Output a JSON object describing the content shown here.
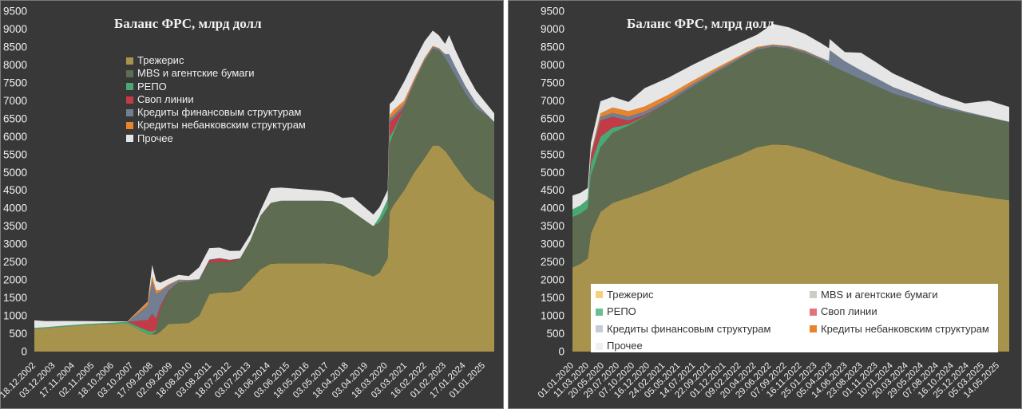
{
  "chart_data": [
    {
      "type": "area",
      "stacked": true,
      "title": "Баланс ФРС, млрд долл",
      "xlabel": "",
      "ylabel": "",
      "ylim": [
        0,
        9500
      ],
      "yticks": [
        0,
        500,
        1000,
        1500,
        2000,
        2500,
        3000,
        3500,
        4000,
        4500,
        5000,
        5500,
        6000,
        6500,
        7000,
        7500,
        8000,
        8500,
        9000,
        9500
      ],
      "grid": false,
      "legend_position": "top-left",
      "x_tick_labels": [
        "18.12.2002",
        "03.12.2003",
        "17.11.2004",
        "02.11.2005",
        "18.10.2006",
        "03.10.2007",
        "17.09.2008",
        "02.09.2009",
        "18.08.2010",
        "03.08.2011",
        "18.07.2012",
        "03.07.2013",
        "18.06.2014",
        "03.06.2015",
        "18.05.2016",
        "03.05.2017",
        "18.04.2018",
        "03.04.2019",
        "18.03.2020",
        "03.03.2021",
        "16.02.2022",
        "01.02.2023",
        "17.01.2024",
        "01.01.2025"
      ],
      "x": [
        "2002.96",
        "2003.5",
        "2004.5",
        "2005.5",
        "2006.5",
        "2007.5",
        "2008.5",
        "2008.71",
        "2008.9",
        "2009.1",
        "2009.5",
        "2010.0",
        "2010.5",
        "2011.0",
        "2011.5",
        "2012.0",
        "2012.5",
        "2013.0",
        "2013.5",
        "2014.0",
        "2014.5",
        "2015.0",
        "2016.0",
        "2017.0",
        "2017.5",
        "2018.0",
        "2018.5",
        "2019.0",
        "2019.5",
        "2019.8",
        "2020.2",
        "2020.3",
        "2020.5",
        "2021.0",
        "2021.5",
        "2022.0",
        "2022.4",
        "2022.7",
        "2023.0",
        "2023.2",
        "2023.5",
        "2024.0",
        "2024.5",
        "2025.0",
        "2025.4"
      ],
      "series": [
        {
          "name": "Трежерис",
          "color": "#a7934c",
          "values": [
            630,
            650,
            700,
            740,
            770,
            780,
            480,
            480,
            480,
            550,
            770,
            780,
            800,
            1000,
            1600,
            1650,
            1650,
            1700,
            2000,
            2300,
            2450,
            2460,
            2460,
            2460,
            2450,
            2400,
            2300,
            2200,
            2100,
            2200,
            2600,
            3900,
            4100,
            4500,
            5000,
            5400,
            5750,
            5750,
            5600,
            5450,
            5200,
            4800,
            4500,
            4350,
            4200
          ]
        },
        {
          "name": "MBS и агентские бумаги",
          "color": "#5e6c51",
          "values": [
            0,
            0,
            0,
            0,
            0,
            0,
            0,
            0,
            100,
            600,
            900,
            1150,
            1150,
            1000,
            900,
            850,
            850,
            900,
            1100,
            1500,
            1700,
            1750,
            1750,
            1750,
            1750,
            1700,
            1600,
            1500,
            1400,
            1400,
            1400,
            1900,
            2000,
            2300,
            2500,
            2700,
            2700,
            2650,
            2600,
            2550,
            2500,
            2400,
            2300,
            2250,
            2200
          ]
        },
        {
          "name": "РЕПО",
          "color": "#4aa874",
          "values": [
            30,
            30,
            30,
            30,
            30,
            50,
            100,
            80,
            30,
            20,
            0,
            0,
            0,
            0,
            0,
            0,
            0,
            0,
            0,
            0,
            0,
            0,
            0,
            0,
            0,
            0,
            0,
            0,
            0,
            150,
            250,
            200,
            100,
            0,
            0,
            0,
            0,
            0,
            0,
            0,
            0,
            0,
            0,
            0,
            0
          ]
        },
        {
          "name": "Своп линии",
          "color": "#c23b46",
          "values": [
            0,
            0,
            0,
            0,
            0,
            0,
            300,
            500,
            300,
            100,
            20,
            0,
            0,
            0,
            50,
            100,
            50,
            0,
            0,
            0,
            0,
            0,
            0,
            0,
            0,
            0,
            0,
            0,
            0,
            0,
            0,
            400,
            300,
            20,
            0,
            0,
            0,
            0,
            0,
            0,
            0,
            0,
            0,
            0,
            0
          ]
        },
        {
          "name": "Кредиты финансовым структурам",
          "color": "#727e91",
          "values": [
            0,
            0,
            0,
            0,
            0,
            0,
            400,
            900,
            700,
            400,
            150,
            60,
            40,
            20,
            20,
            10,
            10,
            0,
            0,
            0,
            0,
            0,
            0,
            0,
            0,
            0,
            0,
            0,
            0,
            0,
            0,
            100,
            100,
            80,
            60,
            50,
            50,
            50,
            100,
            300,
            250,
            200,
            150,
            50,
            10
          ]
        },
        {
          "name": "Кредиты небанковским структурам",
          "color": "#e8842c",
          "values": [
            0,
            0,
            0,
            0,
            0,
            0,
            100,
            150,
            100,
            50,
            30,
            20,
            10,
            0,
            0,
            0,
            0,
            0,
            0,
            0,
            0,
            0,
            0,
            0,
            0,
            0,
            0,
            0,
            0,
            0,
            0,
            100,
            150,
            100,
            60,
            40,
            30,
            20,
            0,
            0,
            0,
            0,
            0,
            0,
            0
          ]
        },
        {
          "name": "Прочее",
          "color": "#e6e6e6",
          "values": [
            80,
            80,
            80,
            80,
            90,
            100,
            150,
            200,
            200,
            180,
            180,
            200,
            220,
            200,
            230,
            250,
            250,
            260,
            260,
            280,
            300,
            300,
            300,
            300,
            300,
            300,
            280,
            280,
            280,
            280,
            300,
            400,
            400,
            420,
            430,
            450,
            450,
            420,
            400,
            400,
            380,
            360,
            340,
            330,
            330
          ]
        }
      ]
    },
    {
      "type": "area",
      "stacked": true,
      "title": "Баланс ФРС, млрд долл",
      "xlabel": "",
      "ylabel": "",
      "ylim": [
        0,
        9500
      ],
      "yticks": [
        0,
        500,
        1000,
        1500,
        2000,
        2500,
        3000,
        3500,
        4000,
        4500,
        5000,
        5500,
        6000,
        6500,
        7000,
        7500,
        8000,
        8500,
        9000,
        9500
      ],
      "grid": false,
      "legend_position": "bottom",
      "x_tick_labels": [
        "01.01.2020",
        "11.03.2020",
        "20.05.2020",
        "29.07.2020",
        "07.10.2020",
        "16.12.2020",
        "24.02.2021",
        "05.05.2021",
        "14.07.2021",
        "22.09.2021",
        "01.12.2021",
        "09.02.2022",
        "20.04.2022",
        "29.06.2022",
        "07.09.2022",
        "16.11.2022",
        "25.01.2023",
        "05.04.2023",
        "14.06.2023",
        "23.08.2023",
        "01.11.2023",
        "10.01.2024",
        "20.03.2024",
        "29.05.2024",
        "07.08.2024",
        "16.10.2024",
        "25.12.2024",
        "05.03.2025",
        "14.05.2025"
      ],
      "x": [
        "2020.0",
        "2020.1",
        "2020.19",
        "2020.23",
        "2020.35",
        "2020.5",
        "2020.7",
        "2020.9",
        "2021.2",
        "2021.5",
        "2021.8",
        "2022.1",
        "2022.3",
        "2022.5",
        "2022.7",
        "2022.9",
        "2023.1",
        "2023.2",
        "2023.21",
        "2023.4",
        "2023.6",
        "2023.8",
        "2024.0",
        "2024.3",
        "2024.6",
        "2024.9",
        "2025.2",
        "2025.45"
      ],
      "series": [
        {
          "name": "Трежерис",
          "color": "#a7934c",
          "values": [
            2350,
            2450,
            2600,
            3300,
            3900,
            4150,
            4300,
            4450,
            4700,
            5000,
            5250,
            5500,
            5700,
            5780,
            5760,
            5650,
            5500,
            5420,
            5400,
            5250,
            5100,
            4950,
            4800,
            4650,
            4500,
            4400,
            4300,
            4220
          ]
        },
        {
          "name": "MBS и агентские бумаги",
          "color": "#5e6c51",
          "values": [
            1400,
            1400,
            1400,
            1600,
            1800,
            1950,
            2000,
            2100,
            2250,
            2400,
            2550,
            2680,
            2720,
            2720,
            2700,
            2680,
            2640,
            2600,
            2600,
            2550,
            2500,
            2450,
            2400,
            2350,
            2300,
            2260,
            2220,
            2180
          ]
        },
        {
          "name": "РЕПО",
          "color": "#4aa874",
          "values": [
            220,
            230,
            250,
            350,
            300,
            150,
            50,
            20,
            0,
            0,
            0,
            0,
            0,
            0,
            0,
            0,
            0,
            0,
            0,
            0,
            0,
            0,
            0,
            0,
            0,
            0,
            0,
            0
          ]
        },
        {
          "name": "Своп линии",
          "color": "#c23b46",
          "values": [
            0,
            0,
            0,
            200,
            450,
            300,
            100,
            30,
            10,
            0,
            0,
            0,
            0,
            0,
            0,
            0,
            0,
            0,
            0,
            0,
            0,
            0,
            0,
            0,
            0,
            0,
            0,
            0
          ]
        },
        {
          "name": "Кредиты финансовым структурам",
          "color": "#727e91",
          "values": [
            0,
            0,
            0,
            50,
            100,
            110,
            110,
            100,
            90,
            70,
            60,
            50,
            50,
            50,
            50,
            50,
            50,
            80,
            400,
            300,
            250,
            220,
            180,
            130,
            80,
            40,
            20,
            10
          ]
        },
        {
          "name": "Кредиты небанковским структурам",
          "color": "#e8842c",
          "values": [
            0,
            0,
            0,
            30,
            100,
            150,
            150,
            140,
            120,
            90,
            60,
            40,
            30,
            20,
            20,
            20,
            10,
            10,
            10,
            0,
            0,
            0,
            0,
            0,
            0,
            0,
            0,
            0
          ]
        },
        {
          "name": "Прочее",
          "color": "#e6e6e6",
          "values": [
            250,
            260,
            270,
            300,
            380,
            390,
            390,
            400,
            410,
            420,
            430,
            440,
            450,
            440,
            430,
            420,
            410,
            400,
            400,
            390,
            380,
            370,
            360,
            350,
            340,
            335,
            330,
            330
          ]
        }
      ]
    }
  ]
}
